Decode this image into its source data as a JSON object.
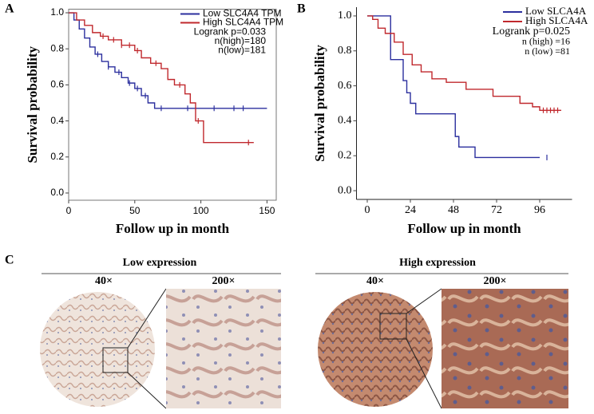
{
  "chart_data": [
    {
      "type": "step",
      "label": "A",
      "ylabel": "Survival probability",
      "xlabel": "Follow up in month",
      "xlim": [
        0,
        157
      ],
      "xticks": [
        0,
        50,
        100,
        150
      ],
      "ylim": [
        -0.04,
        1.02
      ],
      "yticks": [
        {
          "value": 0,
          "label": "0.0"
        },
        0.2,
        0.4,
        0.6,
        0.8,
        {
          "value": 1,
          "label": "1.0"
        }
      ],
      "frame": "box",
      "series": [
        {
          "name": "Low SLC4A4 TPM",
          "color": "#2b2f9e",
          "x": [
            0,
            4,
            8,
            12,
            16,
            20,
            25,
            30,
            35,
            40,
            45,
            50,
            55,
            60,
            65,
            150
          ],
          "values": [
            1.0,
            0.96,
            0.91,
            0.86,
            0.81,
            0.77,
            0.73,
            0.7,
            0.67,
            0.64,
            0.61,
            0.58,
            0.54,
            0.5,
            0.47,
            0.47
          ],
          "censored": [
            22,
            30,
            38,
            46,
            52,
            58,
            70,
            90,
            110,
            125,
            132
          ]
        },
        {
          "name": "High SLC4A4 TPM",
          "color": "#c0282d",
          "x": [
            0,
            6,
            12,
            18,
            24,
            30,
            40,
            50,
            55,
            62,
            70,
            75,
            80,
            88,
            92,
            96,
            102,
            140
          ],
          "values": [
            1.0,
            0.96,
            0.93,
            0.89,
            0.87,
            0.85,
            0.82,
            0.79,
            0.75,
            0.72,
            0.69,
            0.63,
            0.6,
            0.55,
            0.5,
            0.4,
            0.28,
            0.28
          ],
          "censored": [
            26,
            34,
            40,
            46,
            52,
            66,
            84,
            98,
            136
          ]
        }
      ],
      "annotations": [
        "Logrank p=0.033",
        "n(high)=180",
        "n(low)=181"
      ]
    },
    {
      "type": "step",
      "label": "B",
      "ylabel": "Survival probability",
      "xlabel": "Follow up in month",
      "xlim": [
        -6,
        114
      ],
      "xticks": [
        0,
        24,
        48,
        72,
        96
      ],
      "ylim": [
        -0.05,
        1.05
      ],
      "yticks": [
        {
          "value": 0,
          "label": "0.0"
        },
        0.2,
        0.4,
        0.6,
        0.8,
        {
          "value": 1,
          "label": "1.0"
        }
      ],
      "frame": "axes",
      "series": [
        {
          "name": "Low SLCA4A",
          "color": "#2b2f9e",
          "x": [
            0,
            13,
            20,
            22,
            24,
            27,
            49,
            51,
            60,
            96
          ],
          "values": [
            1.0,
            0.75,
            0.63,
            0.56,
            0.5,
            0.44,
            0.31,
            0.25,
            0.19,
            0.19
          ],
          "censored": [
            100
          ]
        },
        {
          "name": "High SLCA4A",
          "color": "#c0282d",
          "x": [
            0,
            3,
            6,
            10,
            15,
            20,
            25,
            30,
            36,
            44,
            55,
            70,
            85,
            92,
            96,
            108
          ],
          "values": [
            1.0,
            0.98,
            0.93,
            0.9,
            0.85,
            0.78,
            0.72,
            0.68,
            0.64,
            0.62,
            0.58,
            0.54,
            0.5,
            0.48,
            0.46,
            0.46
          ],
          "censored": [
            98,
            100,
            102,
            104,
            106
          ]
        }
      ],
      "annotations": [
        "Logrank p=0.025",
        "n (high) =16",
        "n (low) =81"
      ]
    }
  ],
  "panel_c": {
    "label": "C",
    "groups": [
      {
        "title": "Low expression",
        "mag_low": "40×",
        "mag_high": "200×"
      },
      {
        "title": "High expression",
        "mag_low": "40×",
        "mag_high": "200×"
      }
    ]
  }
}
